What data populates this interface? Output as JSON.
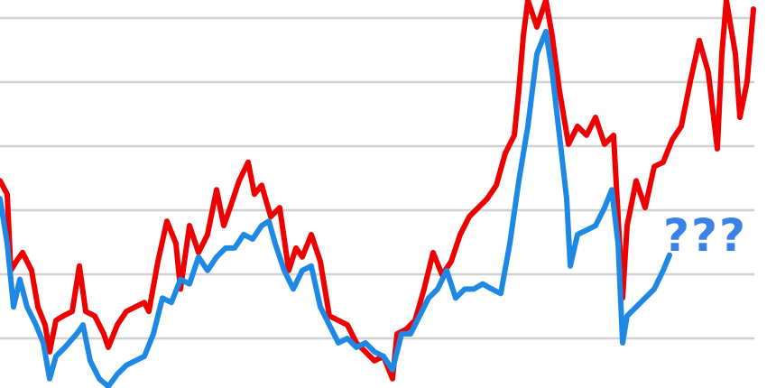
{
  "chart_data": {
    "type": "line",
    "title": "",
    "xlabel": "",
    "ylabel": "",
    "xlim": [
      0,
      86
    ],
    "ylim": [
      0,
      6.28
    ],
    "grid": true,
    "gridlines_y": [
      1,
      2,
      3,
      4,
      5,
      6
    ],
    "annotation": "???",
    "annotation_color": "#3b82e8",
    "series": [
      {
        "color": "#ee0000",
        "points": [
          [
            0,
            3.46
          ],
          [
            0.8,
            3.25
          ],
          [
            1.2,
            2.06
          ],
          [
            1.8,
            2.2
          ],
          [
            2.5,
            2.34
          ],
          [
            3.5,
            2.06
          ],
          [
            4.2,
            1.49
          ],
          [
            5,
            1.21
          ],
          [
            5.5,
            0.79
          ],
          [
            6.2,
            1.28
          ],
          [
            7,
            1.35
          ],
          [
            8,
            1.42
          ],
          [
            8.8,
            2.13
          ],
          [
            9.5,
            1.42
          ],
          [
            10.5,
            1.35
          ],
          [
            11.5,
            1.07
          ],
          [
            12,
            0.86
          ],
          [
            13,
            1.21
          ],
          [
            14,
            1.42
          ],
          [
            15,
            1.49
          ],
          [
            16,
            1.56
          ],
          [
            16.5,
            1.42
          ],
          [
            17.5,
            2.2
          ],
          [
            18.5,
            2.83
          ],
          [
            19.5,
            2.48
          ],
          [
            20,
            1.77
          ],
          [
            21,
            2.76
          ],
          [
            22,
            2.34
          ],
          [
            23,
            2.62
          ],
          [
            24,
            3.32
          ],
          [
            24.8,
            2.76
          ],
          [
            25.5,
            3.04
          ],
          [
            26.5,
            3.46
          ],
          [
            27.5,
            3.75
          ],
          [
            28.2,
            3.25
          ],
          [
            29,
            3.39
          ],
          [
            30,
            2.9
          ],
          [
            31,
            3.04
          ],
          [
            32,
            2.06
          ],
          [
            32.8,
            2.41
          ],
          [
            33.5,
            2.27
          ],
          [
            34.5,
            2.62
          ],
          [
            35.5,
            2.2
          ],
          [
            36.5,
            1.35
          ],
          [
            37.5,
            1.28
          ],
          [
            38.5,
            1.21
          ],
          [
            39.5,
            0.93
          ],
          [
            40.5,
            0.79
          ],
          [
            41.5,
            0.65
          ],
          [
            42.5,
            0.72
          ],
          [
            43.5,
            0.37
          ],
          [
            44,
            1.07
          ],
          [
            45,
            1.14
          ],
          [
            46,
            1.28
          ],
          [
            47,
            1.77
          ],
          [
            48,
            2.34
          ],
          [
            49,
            1.99
          ],
          [
            50,
            2.2
          ],
          [
            51,
            2.62
          ],
          [
            52,
            2.9
          ],
          [
            53,
            3.04
          ],
          [
            54,
            3.18
          ],
          [
            55,
            3.39
          ],
          [
            56,
            3.89
          ],
          [
            57,
            4.17
          ],
          [
            57.5,
            4.87
          ],
          [
            58,
            5.72
          ],
          [
            58.5,
            6.28
          ],
          [
            59.5,
            5.86
          ],
          [
            60.5,
            6.28
          ],
          [
            61.2,
            5.72
          ],
          [
            62,
            4.87
          ],
          [
            63,
            4.03
          ],
          [
            64,
            4.31
          ],
          [
            65,
            4.17
          ],
          [
            66,
            4.45
          ],
          [
            67,
            4.03
          ],
          [
            68,
            4.17
          ],
          [
            69,
            1.63
          ],
          [
            69.5,
            2.76
          ],
          [
            70.5,
            3.46
          ],
          [
            71.5,
            3.04
          ],
          [
            72.5,
            3.68
          ],
          [
            73.5,
            3.75
          ],
          [
            74.5,
            4.1
          ],
          [
            75.5,
            4.31
          ],
          [
            76.5,
            5.01
          ],
          [
            77.5,
            5.65
          ],
          [
            78.5,
            5.15
          ],
          [
            79.5,
            3.96
          ],
          [
            80,
            5.44
          ],
          [
            80.5,
            6.28
          ],
          [
            81.5,
            5.44
          ],
          [
            82,
            4.45
          ],
          [
            82.8,
            5.01
          ],
          [
            83.5,
            6.14
          ]
        ]
      },
      {
        "color": "#1e88e5",
        "points": [
          [
            0,
            3.18
          ],
          [
            0.8,
            2.48
          ],
          [
            1.5,
            1.49
          ],
          [
            2.2,
            1.92
          ],
          [
            3,
            1.49
          ],
          [
            4,
            1.21
          ],
          [
            4.8,
            0.93
          ],
          [
            5.5,
            0.37
          ],
          [
            6.2,
            0.72
          ],
          [
            7.2,
            0.86
          ],
          [
            8.5,
            1.07
          ],
          [
            9.2,
            1.21
          ],
          [
            10,
            0.65
          ],
          [
            11,
            0.37
          ],
          [
            12,
            0.25
          ],
          [
            13,
            0.44
          ],
          [
            14,
            0.58
          ],
          [
            15,
            0.65
          ],
          [
            16,
            0.72
          ],
          [
            17,
            1.07
          ],
          [
            18,
            1.63
          ],
          [
            19,
            1.56
          ],
          [
            20,
            1.92
          ],
          [
            21,
            1.85
          ],
          [
            22,
            2.27
          ],
          [
            23,
            2.06
          ],
          [
            24,
            2.27
          ],
          [
            25,
            2.41
          ],
          [
            26,
            2.41
          ],
          [
            27,
            2.62
          ],
          [
            28,
            2.55
          ],
          [
            29,
            2.76
          ],
          [
            29.8,
            2.83
          ],
          [
            30.5,
            2.48
          ],
          [
            31.5,
            2.06
          ],
          [
            32.5,
            1.77
          ],
          [
            33.5,
            2.06
          ],
          [
            34.5,
            2.13
          ],
          [
            35.5,
            1.49
          ],
          [
            36.5,
            1.21
          ],
          [
            37.5,
            0.93
          ],
          [
            38.5,
            1.0
          ],
          [
            39.5,
            0.86
          ],
          [
            40.5,
            0.93
          ],
          [
            41.5,
            0.79
          ],
          [
            42.5,
            0.72
          ],
          [
            43.5,
            0.51
          ],
          [
            44.5,
            1.07
          ],
          [
            45.5,
            1.07
          ],
          [
            46.5,
            1.35
          ],
          [
            47.5,
            1.63
          ],
          [
            48.5,
            1.77
          ],
          [
            49.5,
            2.06
          ],
          [
            50.5,
            1.63
          ],
          [
            51.5,
            1.77
          ],
          [
            52.5,
            1.77
          ],
          [
            53.5,
            1.85
          ],
          [
            54.5,
            1.77
          ],
          [
            55.5,
            1.7
          ],
          [
            56.5,
            2.48
          ],
          [
            57.5,
            3.46
          ],
          [
            58.5,
            4.31
          ],
          [
            59.5,
            5.44
          ],
          [
            60.5,
            5.79
          ],
          [
            61.2,
            5.15
          ],
          [
            62,
            4.17
          ],
          [
            62.8,
            3.18
          ],
          [
            63.2,
            2.13
          ],
          [
            64,
            2.62
          ],
          [
            65,
            2.69
          ],
          [
            66,
            2.76
          ],
          [
            67,
            3.04
          ],
          [
            67.8,
            3.32
          ],
          [
            68.5,
            2.48
          ],
          [
            69,
            0.93
          ],
          [
            69.5,
            1.35
          ],
          [
            70.5,
            1.49
          ],
          [
            71.5,
            1.63
          ],
          [
            72.5,
            1.77
          ],
          [
            73.5,
            2.06
          ],
          [
            74.2,
            2.3
          ]
        ]
      }
    ]
  }
}
